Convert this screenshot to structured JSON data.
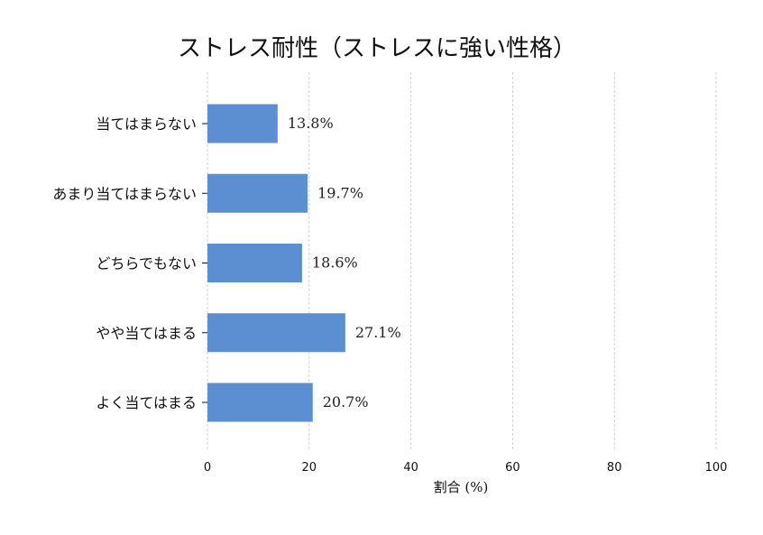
{
  "chart_data": {
    "type": "bar",
    "orientation": "horizontal",
    "title": "ストレス耐性（ストレスに強い性格）",
    "xlabel": "割合 (%)",
    "ylabel": "",
    "xlim": [
      0,
      100
    ],
    "xticks": [
      0,
      20,
      40,
      60,
      80,
      100
    ],
    "grid": "vertical dashed",
    "categories": [
      "当てはまらない",
      "あまり当てはまらない",
      "どちらでもない",
      "やや当てはまる",
      "よく当てはまる"
    ],
    "values": [
      13.8,
      19.7,
      18.6,
      27.1,
      20.7
    ],
    "value_labels": [
      "13.8%",
      "19.7%",
      "18.6%",
      "27.1%",
      "20.7%"
    ],
    "bar_color": "#5b8fd1"
  }
}
